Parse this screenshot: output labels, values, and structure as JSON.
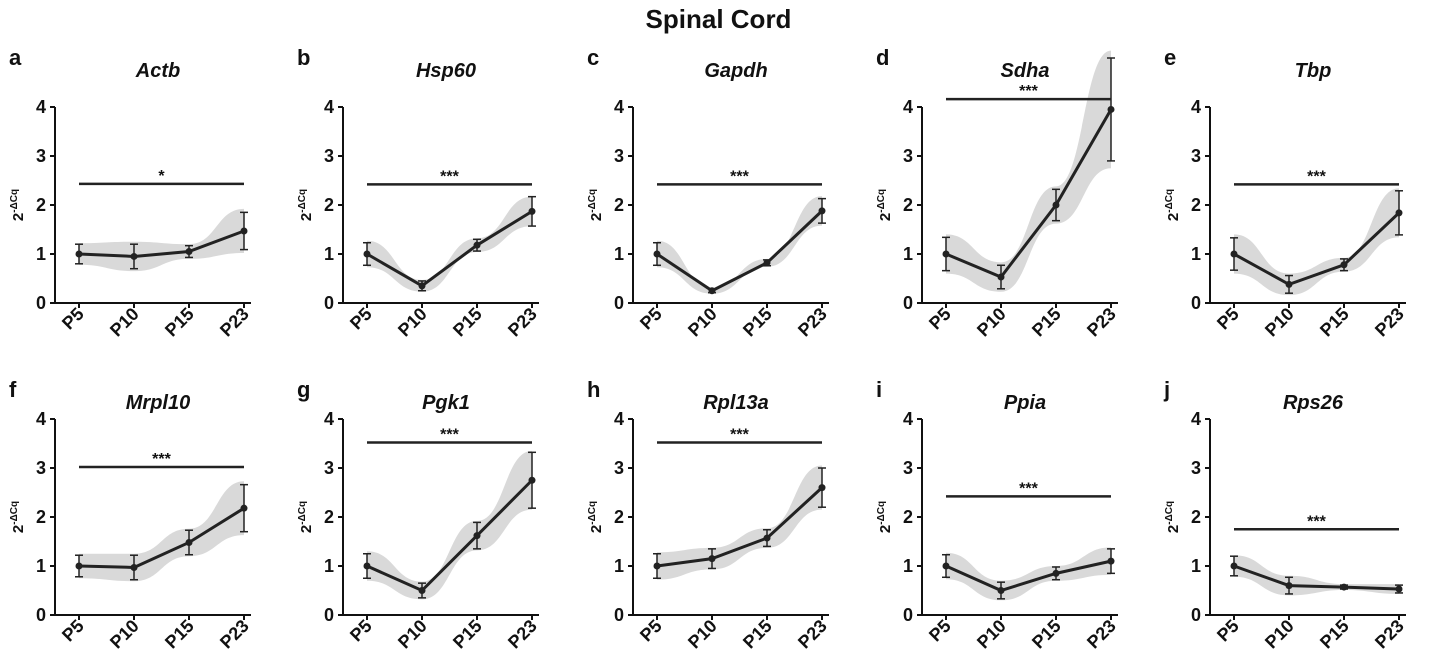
{
  "figure_title": "Spinal Cord",
  "colors": {
    "line": "#222222",
    "band": "#d9d9d9",
    "axis": "#111111"
  },
  "chart_data": [
    {
      "panel": "a",
      "type": "line",
      "title": "Actb",
      "ylabel": "2-ΔCq",
      "ylim": [
        0,
        4
      ],
      "yticks": [
        0,
        1,
        2,
        3,
        4
      ],
      "categories": [
        "P5",
        "P10",
        "P15",
        "P23"
      ],
      "values": [
        1.0,
        0.95,
        1.05,
        1.47
      ],
      "error": [
        0.2,
        0.25,
        0.12,
        0.38
      ],
      "band_half_width": [
        0.22,
        0.3,
        0.15,
        0.45
      ],
      "significance": "*",
      "sig_y": 2.43
    },
    {
      "panel": "b",
      "type": "line",
      "title": "Hsp60",
      "ylabel": "2-ΔCq",
      "ylim": [
        0,
        4
      ],
      "yticks": [
        0,
        1,
        2,
        3,
        4
      ],
      "categories": [
        "P5",
        "P10",
        "P15",
        "P23"
      ],
      "values": [
        1.0,
        0.35,
        1.18,
        1.87
      ],
      "error": [
        0.23,
        0.1,
        0.12,
        0.3
      ],
      "band_half_width": [
        0.27,
        0.12,
        0.14,
        0.3
      ],
      "significance": "***",
      "sig_y": 2.42
    },
    {
      "panel": "c",
      "type": "line",
      "title": "Gapdh",
      "ylabel": "2-ΔCq",
      "ylim": [
        0,
        4
      ],
      "yticks": [
        0,
        1,
        2,
        3,
        4
      ],
      "categories": [
        "P5",
        "P10",
        "P15",
        "P23"
      ],
      "values": [
        1.0,
        0.25,
        0.82,
        1.88
      ],
      "error": [
        0.23,
        0.04,
        0.06,
        0.25
      ],
      "band_half_width": [
        0.27,
        0.06,
        0.08,
        0.3
      ],
      "significance": "***",
      "sig_y": 2.42
    },
    {
      "panel": "d",
      "type": "line",
      "title": "Sdha",
      "ylabel": "2-ΔCq",
      "ylim": [
        0,
        4
      ],
      "yticks": [
        0,
        1,
        2,
        3,
        4
      ],
      "categories": [
        "P5",
        "P10",
        "P15",
        "P23"
      ],
      "values": [
        1.0,
        0.53,
        2.0,
        3.95
      ],
      "error": [
        0.34,
        0.24,
        0.32,
        1.05
      ],
      "band_half_width": [
        0.4,
        0.3,
        0.38,
        1.2
      ],
      "significance": "***",
      "sig_y": 4.16
    },
    {
      "panel": "e",
      "type": "line",
      "title": "Tbp",
      "ylabel": "2-ΔCq",
      "ylim": [
        0,
        4
      ],
      "yticks": [
        0,
        1,
        2,
        3,
        4
      ],
      "categories": [
        "P5",
        "P10",
        "P15",
        "P23"
      ],
      "values": [
        1.0,
        0.38,
        0.78,
        1.84
      ],
      "error": [
        0.33,
        0.18,
        0.12,
        0.45
      ],
      "band_half_width": [
        0.4,
        0.22,
        0.14,
        0.5
      ],
      "significance": "***",
      "sig_y": 2.42
    },
    {
      "panel": "f",
      "type": "line",
      "title": "Mrpl10",
      "ylabel": "2-ΔCq",
      "ylim": [
        0,
        4
      ],
      "yticks": [
        0,
        1,
        2,
        3,
        4
      ],
      "categories": [
        "P5",
        "P10",
        "P15",
        "P23"
      ],
      "values": [
        1.0,
        0.97,
        1.48,
        2.18
      ],
      "error": [
        0.22,
        0.25,
        0.25,
        0.48
      ],
      "band_half_width": [
        0.25,
        0.28,
        0.28,
        0.55
      ],
      "significance": "***",
      "sig_y": 3.02
    },
    {
      "panel": "g",
      "type": "line",
      "title": "Pgk1",
      "ylabel": "2-ΔCq",
      "ylim": [
        0,
        4
      ],
      "yticks": [
        0,
        1,
        2,
        3,
        4
      ],
      "categories": [
        "P5",
        "P10",
        "P15",
        "P23"
      ],
      "values": [
        1.0,
        0.5,
        1.62,
        2.75
      ],
      "error": [
        0.25,
        0.15,
        0.27,
        0.57
      ],
      "band_half_width": [
        0.3,
        0.18,
        0.3,
        0.6
      ],
      "significance": "***",
      "sig_y": 3.52
    },
    {
      "panel": "h",
      "type": "line",
      "title": "Rpl13a",
      "ylabel": "2-ΔCq",
      "ylim": [
        0,
        4
      ],
      "yticks": [
        0,
        1,
        2,
        3,
        4
      ],
      "categories": [
        "P5",
        "P10",
        "P15",
        "P23"
      ],
      "values": [
        1.0,
        1.15,
        1.57,
        2.6
      ],
      "error": [
        0.25,
        0.2,
        0.17,
        0.4
      ],
      "band_half_width": [
        0.28,
        0.22,
        0.2,
        0.45
      ],
      "significance": "***",
      "sig_y": 3.52
    },
    {
      "panel": "i",
      "type": "line",
      "title": "Ppia",
      "ylabel": "2-ΔCq",
      "ylim": [
        0,
        4
      ],
      "yticks": [
        0,
        1,
        2,
        3,
        4
      ],
      "categories": [
        "P5",
        "P10",
        "P15",
        "P23"
      ],
      "values": [
        1.0,
        0.5,
        0.85,
        1.1
      ],
      "error": [
        0.23,
        0.17,
        0.13,
        0.25
      ],
      "band_half_width": [
        0.27,
        0.2,
        0.15,
        0.28
      ],
      "significance": "***",
      "sig_y": 2.42
    },
    {
      "panel": "j",
      "type": "line",
      "title": "Rps26",
      "ylabel": "2-ΔCq",
      "ylim": [
        0,
        4
      ],
      "yticks": [
        0,
        1,
        2,
        3,
        4
      ],
      "categories": [
        "P5",
        "P10",
        "P15",
        "P23"
      ],
      "values": [
        1.0,
        0.6,
        0.57,
        0.53
      ],
      "error": [
        0.2,
        0.17,
        0.04,
        0.08
      ],
      "band_half_width": [
        0.22,
        0.2,
        0.06,
        0.1
      ],
      "significance": "***",
      "sig_y": 1.75
    }
  ]
}
